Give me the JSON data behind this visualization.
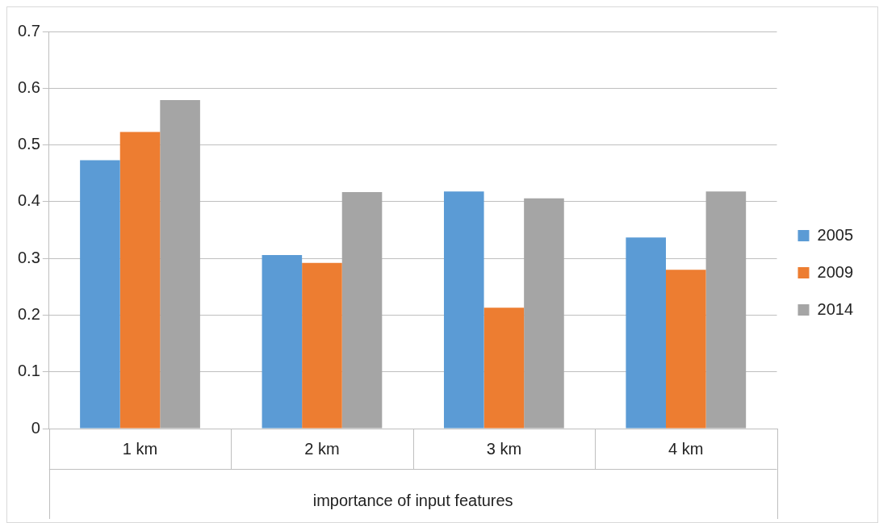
{
  "chart_data": {
    "type": "bar",
    "xlabel": "importance of input features",
    "categories": [
      "1 km",
      "2 km",
      "3 km",
      "4 km"
    ],
    "series": [
      {
        "name": "2005",
        "color": "#5b9bd5",
        "values": [
          0.473,
          0.306,
          0.418,
          0.337
        ]
      },
      {
        "name": "2009",
        "color": "#ed7d31",
        "values": [
          0.523,
          0.292,
          0.213,
          0.28
        ]
      },
      {
        "name": "2014",
        "color": "#a5a5a5",
        "values": [
          0.579,
          0.417,
          0.406,
          0.418
        ]
      }
    ],
    "ylim": [
      0,
      0.7
    ],
    "yticks": [
      0,
      0.1,
      0.2,
      0.3,
      0.4,
      0.5,
      0.6,
      0.7
    ],
    "grid": "y",
    "legend": "right"
  }
}
